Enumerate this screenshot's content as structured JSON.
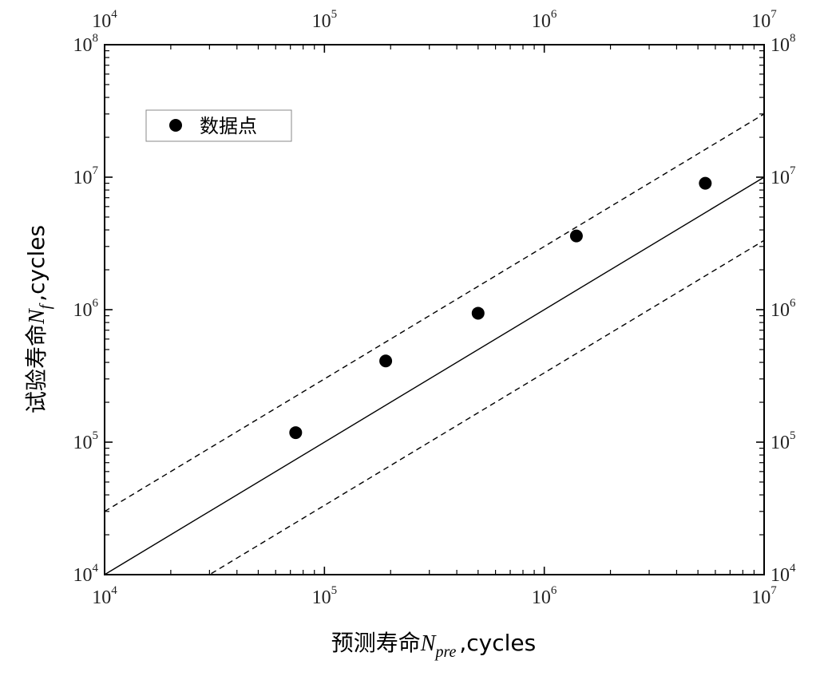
{
  "chart_data": {
    "type": "scatter",
    "xscale": "log",
    "yscale": "log",
    "xlim": [
      10000,
      10000000
    ],
    "ylim": [
      10000,
      100000000
    ],
    "xticks": [
      10000,
      100000,
      1000000,
      10000000
    ],
    "yticks": [
      10000,
      100000,
      1000000,
      10000000,
      100000000
    ],
    "tick_base": "10",
    "xtick_exponents": [
      "4",
      "5",
      "6",
      "7"
    ],
    "ytick_exponents": [
      "4",
      "5",
      "6",
      "7",
      "8"
    ],
    "xlabel": {
      "text": "预测寿命",
      "var": "N",
      "sub": "pre",
      "unit": ",cycles"
    },
    "ylabel": {
      "text": "试验寿命",
      "var": "N",
      "sub": "f",
      "unit": ",cycles"
    },
    "series": [
      {
        "name": "数据点",
        "marker": "filled-circle",
        "color": "#000000",
        "points": [
          {
            "x": 74000,
            "y": 118000
          },
          {
            "x": 190000,
            "y": 410000
          },
          {
            "x": 500000,
            "y": 940000
          },
          {
            "x": 1400000,
            "y": 3600000
          },
          {
            "x": 5400000,
            "y": 9000000
          }
        ]
      }
    ],
    "reference_lines": [
      {
        "kind": "y = x",
        "style": "solid",
        "factor": 1
      },
      {
        "kind": "y = 3x",
        "style": "dashed",
        "factor": 3
      },
      {
        "kind": "y = x/3",
        "style": "dashed",
        "factor": 0.3333333333
      }
    ],
    "legend": {
      "position": "top-left",
      "entries": [
        "数据点"
      ]
    },
    "grid": false,
    "mirrored_axes": true
  }
}
